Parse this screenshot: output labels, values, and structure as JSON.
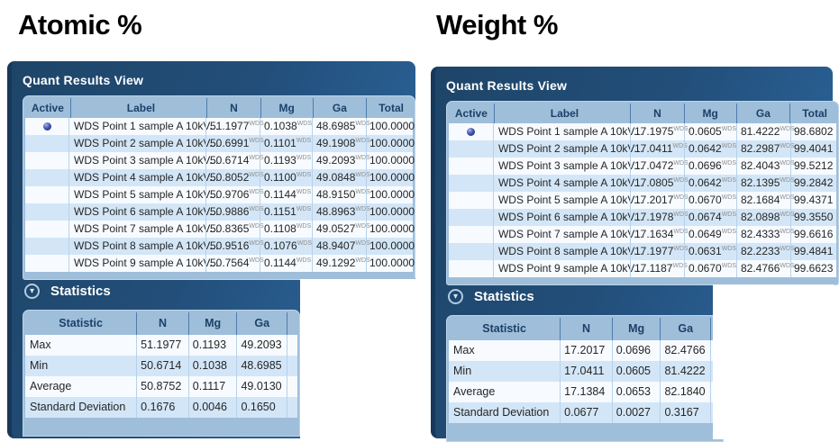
{
  "theme": {
    "panel-dark": "#1e4568",
    "panel-light": "#2f6ba5",
    "panel-edge": "#16385a",
    "container": "#9fbeda",
    "head-text": "#1b4168",
    "sep": "#4f7cab",
    "row-odd": "#f7fbff",
    "row-even": "#d3e6f7",
    "wds": "#8e8e8e"
  },
  "panels": [
    {
      "heading": "Atomic %",
      "window_title": "Quant Results View",
      "results_table": {
        "columns": [
          "Active",
          "Label",
          "N",
          "Mg",
          "Ga",
          "Total"
        ],
        "wds_tag": "WDS",
        "rows": [
          {
            "active": true,
            "label": "WDS Point 1 sample A 10kV...",
            "n": "51.1977",
            "mg": "0.1038",
            "ga": "48.6985",
            "total": "100.0000"
          },
          {
            "active": false,
            "label": "WDS Point 2 sample A 10kV...",
            "n": "50.6991",
            "mg": "0.1101",
            "ga": "49.1908",
            "total": "100.0000"
          },
          {
            "active": false,
            "label": "WDS Point 3 sample A 10kV...",
            "n": "50.6714",
            "mg": "0.1193",
            "ga": "49.2093",
            "total": "100.0000"
          },
          {
            "active": false,
            "label": "WDS Point 4 sample A 10kV...",
            "n": "50.8052",
            "mg": "0.1100",
            "ga": "49.0848",
            "total": "100.0000"
          },
          {
            "active": false,
            "label": "WDS Point 5 sample A 10kV...",
            "n": "50.9706",
            "mg": "0.1144",
            "ga": "48.9150",
            "total": "100.0000"
          },
          {
            "active": false,
            "label": "WDS Point 6 sample A 10kV...",
            "n": "50.9886",
            "mg": "0.1151",
            "ga": "48.8963",
            "total": "100.0000"
          },
          {
            "active": false,
            "label": "WDS Point 7 sample A 10kV...",
            "n": "50.8365",
            "mg": "0.1108",
            "ga": "49.0527",
            "total": "100.0000"
          },
          {
            "active": false,
            "label": "WDS Point 8 sample A 10kV...",
            "n": "50.9516",
            "mg": "0.1076",
            "ga": "48.9407",
            "total": "100.0000"
          },
          {
            "active": false,
            "label": "WDS Point 9 sample A 10kV...",
            "n": "50.7564",
            "mg": "0.1144",
            "ga": "49.1292",
            "total": "100.0000"
          }
        ]
      },
      "statistics": {
        "section_title": "Statistics",
        "columns": [
          "Statistic",
          "N",
          "Mg",
          "Ga"
        ],
        "rows": [
          {
            "statistic": "Max",
            "n": "51.1977",
            "mg": "0.1193",
            "ga": "49.2093"
          },
          {
            "statistic": "Min",
            "n": "50.6714",
            "mg": "0.1038",
            "ga": "48.6985"
          },
          {
            "statistic": "Average",
            "n": "50.8752",
            "mg": "0.1117",
            "ga": "49.0130"
          },
          {
            "statistic": "Standard Deviation",
            "n": "0.1676",
            "mg": "0.0046",
            "ga": "0.1650"
          }
        ]
      }
    },
    {
      "heading": "Weight %",
      "window_title": "Quant Results View",
      "results_table": {
        "columns": [
          "Active",
          "Label",
          "N",
          "Mg",
          "Ga",
          "Total"
        ],
        "wds_tag": "WDS",
        "rows": [
          {
            "active": true,
            "label": "WDS Point 1 sample A 10kV...",
            "n": "17.1975",
            "mg": "0.0605",
            "ga": "81.4222",
            "total": "98.6802"
          },
          {
            "active": false,
            "label": "WDS Point 2 sample A 10kV...",
            "n": "17.0411",
            "mg": "0.0642",
            "ga": "82.2987",
            "total": "99.4041"
          },
          {
            "active": false,
            "label": "WDS Point 3 sample A 10kV...",
            "n": "17.0472",
            "mg": "0.0696",
            "ga": "82.4043",
            "total": "99.5212"
          },
          {
            "active": false,
            "label": "WDS Point 4 sample A 10kV...",
            "n": "17.0805",
            "mg": "0.0642",
            "ga": "82.1395",
            "total": "99.2842"
          },
          {
            "active": false,
            "label": "WDS Point 5 sample A 10kV...",
            "n": "17.2017",
            "mg": "0.0670",
            "ga": "82.1684",
            "total": "99.4371"
          },
          {
            "active": false,
            "label": "WDS Point 6 sample A 10kV...",
            "n": "17.1978",
            "mg": "0.0674",
            "ga": "82.0898",
            "total": "99.3550"
          },
          {
            "active": false,
            "label": "WDS Point 7 sample A 10kV...",
            "n": "17.1634",
            "mg": "0.0649",
            "ga": "82.4333",
            "total": "99.6616"
          },
          {
            "active": false,
            "label": "WDS Point 8 sample A 10kV...",
            "n": "17.1977",
            "mg": "0.0631",
            "ga": "82.2233",
            "total": "99.4841"
          },
          {
            "active": false,
            "label": "WDS Point 9 sample A 10kV...",
            "n": "17.1187",
            "mg": "0.0670",
            "ga": "82.4766",
            "total": "99.6623"
          }
        ]
      },
      "statistics": {
        "section_title": "Statistics",
        "columns": [
          "Statistic",
          "N",
          "Mg",
          "Ga"
        ],
        "rows": [
          {
            "statistic": "Max",
            "n": "17.2017",
            "mg": "0.0696",
            "ga": "82.4766"
          },
          {
            "statistic": "Min",
            "n": "17.0411",
            "mg": "0.0605",
            "ga": "81.4222"
          },
          {
            "statistic": "Average",
            "n": "17.1384",
            "mg": "0.0653",
            "ga": "82.1840"
          },
          {
            "statistic": "Standard Deviation",
            "n": "0.0677",
            "mg": "0.0027",
            "ga": "0.3167"
          }
        ]
      }
    }
  ]
}
